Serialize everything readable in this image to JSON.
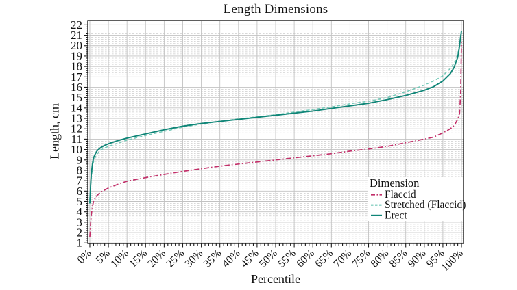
{
  "chart": {
    "title": "Length Dimensions",
    "xlabel": "Percentile",
    "ylabel": "Length, cm"
  },
  "axes": {
    "x_tick_labels": [
      "0%",
      "5%",
      "10%",
      "15%",
      "20%",
      "25%",
      "30%",
      "35%",
      "40%",
      "45%",
      "50%",
      "55%",
      "60%",
      "65%",
      "70%",
      "75%",
      "80%",
      "85%",
      "90%",
      "95%",
      "100%"
    ],
    "y_tick_labels": [
      "1",
      "2",
      "3",
      "4",
      "5",
      "6",
      "7",
      "8",
      "9",
      "10",
      "11",
      "12",
      "13",
      "14",
      "15",
      "16",
      "17",
      "18",
      "19",
      "20",
      "21",
      "22"
    ]
  },
  "legend": {
    "title": "Dimension",
    "items": [
      {
        "label": "Flaccid"
      },
      {
        "label": "Stretched (Flaccid)"
      },
      {
        "label": "Erect"
      }
    ]
  },
  "colors": {
    "flaccid": "#c22f69",
    "stretched": "#72c7b6",
    "erect": "#0f8577",
    "grid_major": "#c2c2c2",
    "grid_minor": "#cbcbcb",
    "axis": "#1a1a1a",
    "text": "#111111",
    "background": "#ffffff"
  },
  "chart_data": {
    "type": "line",
    "title": "Length Dimensions",
    "xlabel": "Percentile",
    "ylabel": "Length, cm",
    "xlim": [
      0,
      100
    ],
    "ylim": [
      1,
      22
    ],
    "x_tick_step_percent": 5,
    "y_tick_step_cm": 1,
    "grid": true,
    "minor_grid_dashed": true,
    "legend_position": "lower right",
    "x_percentile": [
      0,
      0.2,
      0.4,
      0.7,
      1,
      1.5,
      2,
      3,
      4,
      5,
      7.5,
      10,
      15,
      20,
      25,
      30,
      35,
      40,
      45,
      50,
      55,
      60,
      65,
      70,
      75,
      80,
      85,
      90,
      92.5,
      95,
      97,
      98,
      99,
      99.5,
      99.8,
      100
    ],
    "series": [
      {
        "name": "Flaccid",
        "style": "dash-dot",
        "color": "#c22f69",
        "values": [
          1.6,
          2.8,
          3.7,
          4.5,
          5.0,
          5.35,
          5.6,
          5.9,
          6.1,
          6.3,
          6.65,
          6.95,
          7.3,
          7.6,
          7.9,
          8.15,
          8.4,
          8.6,
          8.8,
          9.0,
          9.2,
          9.4,
          9.6,
          9.85,
          10.05,
          10.3,
          10.65,
          11.0,
          11.2,
          11.6,
          12.0,
          12.3,
          12.9,
          13.5,
          15.5,
          20.3
        ]
      },
      {
        "name": "Stretched (Flaccid)",
        "style": "dashed",
        "color": "#72c7b6",
        "values": [
          5.2,
          6.3,
          7.3,
          8.2,
          8.8,
          9.3,
          9.6,
          9.95,
          10.15,
          10.3,
          10.6,
          10.9,
          11.35,
          11.75,
          12.15,
          12.45,
          12.7,
          12.95,
          13.15,
          13.35,
          13.6,
          13.85,
          14.1,
          14.4,
          14.65,
          15.0,
          15.55,
          16.2,
          16.6,
          17.1,
          17.8,
          18.3,
          19.2,
          20.1,
          20.8,
          21.2
        ]
      },
      {
        "name": "Erect",
        "style": "solid",
        "color": "#0f8577",
        "values": [
          4.8,
          6.5,
          7.6,
          8.6,
          9.2,
          9.6,
          9.9,
          10.2,
          10.4,
          10.55,
          10.85,
          11.1,
          11.5,
          11.9,
          12.25,
          12.5,
          12.7,
          12.9,
          13.1,
          13.3,
          13.5,
          13.7,
          13.95,
          14.2,
          14.45,
          14.8,
          15.2,
          15.7,
          16.05,
          16.6,
          17.3,
          17.9,
          18.9,
          20.0,
          20.9,
          21.4
        ]
      }
    ]
  }
}
